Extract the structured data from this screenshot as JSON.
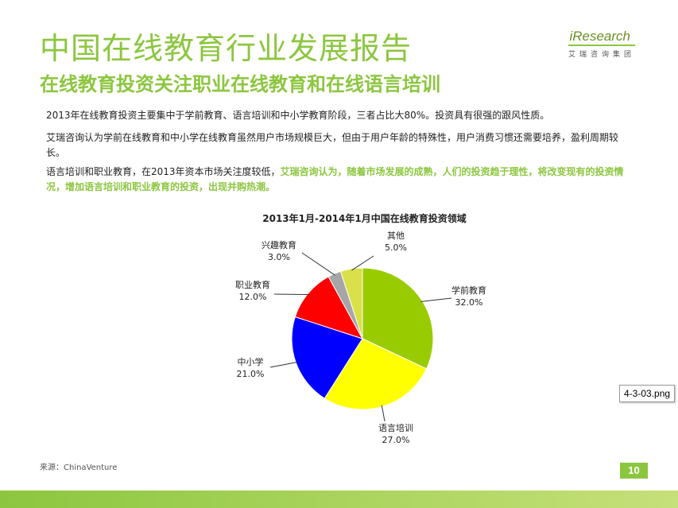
{
  "header": {
    "title": "中国在线教育行业发展报告",
    "subtitle": "在线教育投资关注职业在线教育和在线语言培训"
  },
  "logo": {
    "name": "iResearch",
    "sub": "艾瑞咨询集团"
  },
  "body": {
    "p1": "2013年在线教育投资主要集中于学前教育、语言培训和中小学教育阶段，三者占比大80%。投资具有很强的跟风性质。",
    "p2": "艾瑞咨询认为学前在线教育和中小学在线教育虽然用户市场规模巨大，但由于用户年龄的特殊性，用户消费习惯还需要培养，盈利周期较长。",
    "p3_plain": "语言培训和职业教育，在2013年资本市场关注度较低，",
    "p3_highlight": "艾瑞咨询认为，随着市场发展的成熟，人们的投资趋于理性，将改变现有的投资情况，增加语言培训和职业教育的投资，出现并购热潮。"
  },
  "chart_data": {
    "type": "pie",
    "title": "2013年1月-2014年1月中国在线教育投资领域",
    "slices": [
      {
        "label": "学前教育",
        "value": 32.0,
        "display": "32.0%",
        "color": "#99cc00"
      },
      {
        "label": "语言培训",
        "value": 27.0,
        "display": "27.0%",
        "color": "#ffff00"
      },
      {
        "label": "中小学",
        "value": 21.0,
        "display": "21.0%",
        "color": "#0000ff"
      },
      {
        "label": "职业教育",
        "value": 12.0,
        "display": "12.0%",
        "color": "#ff0000"
      },
      {
        "label": "兴趣教育",
        "value": 3.0,
        "display": "3.0%",
        "color": "#a6a6a6"
      },
      {
        "label": "其他",
        "value": 5.0,
        "display": "5.0%",
        "color": "#d9e04a"
      }
    ]
  },
  "file_tag": "4-3-03.png",
  "footer": {
    "source": "来源：ChinaVenture",
    "page": "10"
  }
}
